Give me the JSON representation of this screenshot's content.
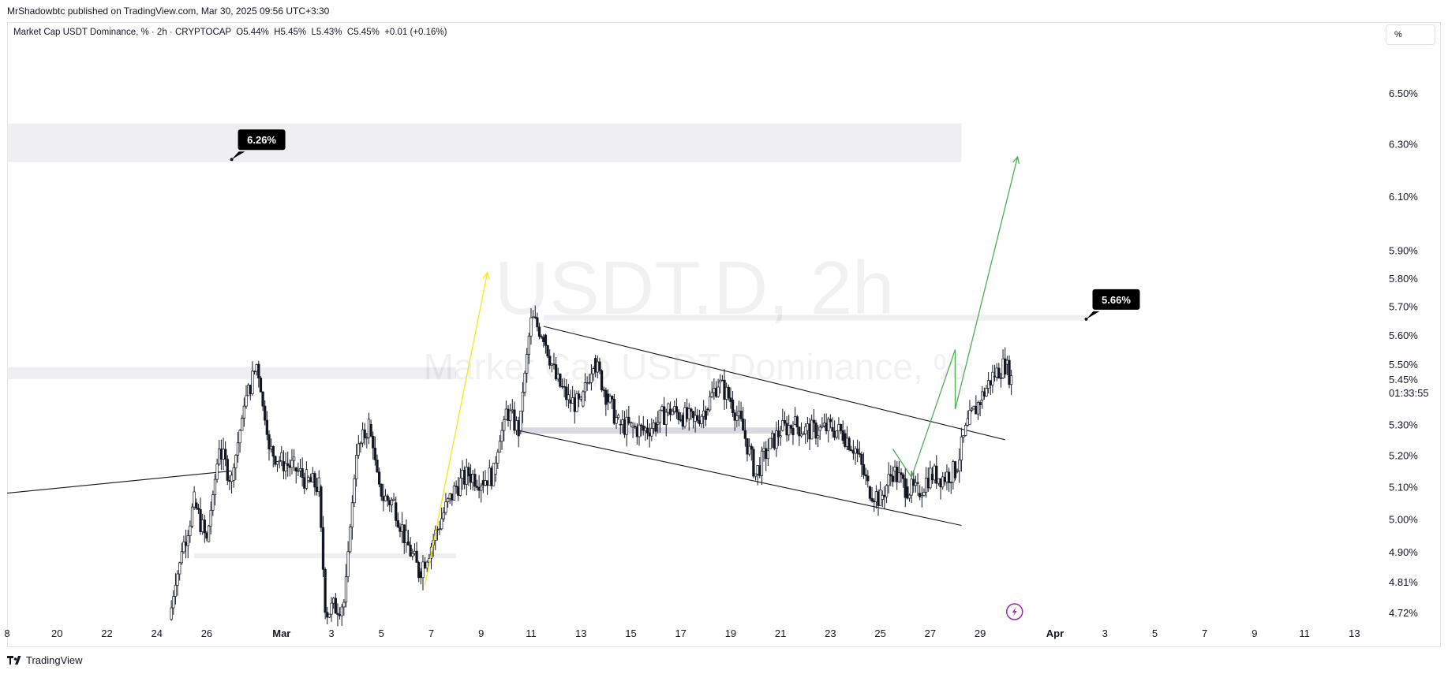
{
  "publisher": "MrShadowbtc published on TradingView.com, Mar 30, 2025 09:56 UTC+3:30",
  "symbol_line": "Market Cap USDT Dominance, % · 2h · CRYPTOCAP  O5.44%  H5.45%  L5.43%  C5.45%  +0.01 (+0.16%)",
  "scale_button": "%",
  "footer": "TradingView",
  "chart_data": {
    "type": "line",
    "title": "",
    "xlabel": "",
    "ylabel": "",
    "watermark": {
      "symbol": "USDT.D, 2h",
      "name": "Market Cap USDT Dominance, %"
    },
    "y_axis": {
      "scale": "log",
      "range": [
        4.69,
        6.68
      ],
      "ticks": [
        "6.50%",
        "6.30%",
        "6.10%",
        "5.90%",
        "5.80%",
        "5.70%",
        "5.60%",
        "5.50%",
        "5.30%",
        "5.20%",
        "5.10%",
        "5.00%",
        "4.90%",
        "4.81%",
        "4.72%"
      ],
      "tick_values": [
        6.5,
        6.3,
        6.1,
        5.9,
        5.8,
        5.7,
        5.6,
        5.5,
        5.3,
        5.2,
        5.1,
        5.0,
        4.9,
        4.81,
        4.72
      ],
      "last_price": "5.45%",
      "last_value": 5.45,
      "countdown": "01:33:55"
    },
    "x_axis": {
      "range": [
        "2025-02-18",
        "2025-04-14"
      ],
      "ticks": [
        {
          "label": "8",
          "date": "2025-02-18"
        },
        {
          "label": "20",
          "date": "2025-02-20"
        },
        {
          "label": "22",
          "date": "2025-02-22"
        },
        {
          "label": "24",
          "date": "2025-02-24"
        },
        {
          "label": "26",
          "date": "2025-02-26"
        },
        {
          "label": "Mar",
          "date": "2025-03-01",
          "bold": true
        },
        {
          "label": "3",
          "date": "2025-03-03"
        },
        {
          "label": "5",
          "date": "2025-03-05"
        },
        {
          "label": "7",
          "date": "2025-03-07"
        },
        {
          "label": "9",
          "date": "2025-03-09"
        },
        {
          "label": "11",
          "date": "2025-03-11"
        },
        {
          "label": "13",
          "date": "2025-03-13"
        },
        {
          "label": "15",
          "date": "2025-03-15"
        },
        {
          "label": "17",
          "date": "2025-03-17"
        },
        {
          "label": "19",
          "date": "2025-03-19"
        },
        {
          "label": "21",
          "date": "2025-03-21"
        },
        {
          "label": "23",
          "date": "2025-03-23"
        },
        {
          "label": "25",
          "date": "2025-03-25"
        },
        {
          "label": "27",
          "date": "2025-03-27"
        },
        {
          "label": "29",
          "date": "2025-03-29"
        },
        {
          "label": "Apr",
          "date": "2025-04-01",
          "bold": true
        },
        {
          "label": "3",
          "date": "2025-04-03"
        },
        {
          "label": "5",
          "date": "2025-04-05"
        },
        {
          "label": "7",
          "date": "2025-04-07"
        },
        {
          "label": "9",
          "date": "2025-04-09"
        },
        {
          "label": "11",
          "date": "2025-04-11"
        },
        {
          "label": "13",
          "date": "2025-04-13"
        }
      ]
    },
    "grid": false,
    "series": [
      {
        "price_path": [
          [
            "2025-02-24 12:00",
            4.7
          ],
          [
            "2025-02-25 00:00",
            4.9
          ],
          [
            "2025-02-25 12:00",
            5.05
          ],
          [
            "2025-02-26 00:00",
            4.93
          ],
          [
            "2025-02-26 12:00",
            5.22
          ],
          [
            "2025-02-27 00:00",
            5.12
          ],
          [
            "2025-02-27 12:00",
            5.36
          ],
          [
            "2025-02-28 00:00",
            5.5
          ],
          [
            "2025-02-28 12:00",
            5.22
          ],
          [
            "2025-03-01 00:00",
            5.18
          ],
          [
            "2025-03-01 12:00",
            5.16
          ],
          [
            "2025-03-02 00:00",
            5.12
          ],
          [
            "2025-03-02 12:00",
            5.1
          ],
          [
            "2025-03-02 18:00",
            4.72
          ],
          [
            "2025-03-03 12:00",
            4.75
          ],
          [
            "2025-03-04 00:00",
            5.2
          ],
          [
            "2025-03-04 12:00",
            5.3
          ],
          [
            "2025-03-05 00:00",
            5.07
          ],
          [
            "2025-03-05 12:00",
            5.05
          ],
          [
            "2025-03-06 00:00",
            4.93
          ],
          [
            "2025-03-06 12:00",
            4.84
          ],
          [
            "2025-03-07 00:00",
            4.92
          ],
          [
            "2025-03-07 12:00",
            5.02
          ],
          [
            "2025-03-08 00:00",
            5.1
          ],
          [
            "2025-03-08 12:00",
            5.14
          ],
          [
            "2025-03-09 00:00",
            5.12
          ],
          [
            "2025-03-09 12:00",
            5.14
          ],
          [
            "2025-03-10 00:00",
            5.35
          ],
          [
            "2025-03-10 12:00",
            5.28
          ],
          [
            "2025-03-11 00:00",
            5.66
          ],
          [
            "2025-03-11 12:00",
            5.6
          ],
          [
            "2025-03-12 00:00",
            5.45
          ],
          [
            "2025-03-12 12:00",
            5.38
          ],
          [
            "2025-03-13 00:00",
            5.36
          ],
          [
            "2025-03-13 12:00",
            5.52
          ],
          [
            "2025-03-14 00:00",
            5.4
          ],
          [
            "2025-03-14 12:00",
            5.3
          ],
          [
            "2025-03-15 00:00",
            5.29
          ],
          [
            "2025-03-15 12:00",
            5.28
          ],
          [
            "2025-03-16 00:00",
            5.3
          ],
          [
            "2025-03-16 12:00",
            5.35
          ],
          [
            "2025-03-17 00:00",
            5.33
          ],
          [
            "2025-03-17 12:00",
            5.31
          ],
          [
            "2025-03-18 00:00",
            5.35
          ],
          [
            "2025-03-18 12:00",
            5.44
          ],
          [
            "2025-03-19 00:00",
            5.38
          ],
          [
            "2025-03-19 12:00",
            5.28
          ],
          [
            "2025-03-20 00:00",
            5.14
          ],
          [
            "2025-03-20 12:00",
            5.22
          ],
          [
            "2025-03-21 00:00",
            5.28
          ],
          [
            "2025-03-21 12:00",
            5.3
          ],
          [
            "2025-03-22 00:00",
            5.28
          ],
          [
            "2025-03-22 12:00",
            5.28
          ],
          [
            "2025-03-23 00:00",
            5.29
          ],
          [
            "2025-03-23 12:00",
            5.27
          ],
          [
            "2025-03-24 00:00",
            5.22
          ],
          [
            "2025-03-24 12:00",
            5.1
          ],
          [
            "2025-03-25 00:00",
            5.06
          ],
          [
            "2025-03-25 12:00",
            5.15
          ],
          [
            "2025-03-26 00:00",
            5.1
          ],
          [
            "2025-03-26 12:00",
            5.08
          ],
          [
            "2025-03-27 00:00",
            5.14
          ],
          [
            "2025-03-27 12:00",
            5.13
          ],
          [
            "2025-03-28 00:00",
            5.15
          ],
          [
            "2025-03-28 12:00",
            5.3
          ],
          [
            "2025-03-29 00:00",
            5.38
          ],
          [
            "2025-03-29 12:00",
            5.46
          ],
          [
            "2025-03-30 00:00",
            5.5
          ],
          [
            "2025-03-30 06:00",
            5.45
          ]
        ]
      }
    ],
    "zones": [
      {
        "from": "2025-02-18",
        "to": "2025-03-28 06:00",
        "y_low": 6.23,
        "y_high": 6.38
      },
      {
        "from": "2025-02-18",
        "to": "2025-03-08",
        "y_low": 5.45,
        "y_high": 5.49
      },
      {
        "from": "2025-02-25 12:00",
        "to": "2025-03-08",
        "y_low": 4.88,
        "y_high": 4.895
      },
      {
        "from": "2025-03-10 12:00",
        "to": "2025-03-21 00:00",
        "y_low": 5.27,
        "y_high": 5.29
      },
      {
        "from": "2025-03-11 12:00",
        "to": "2025-04-02 06:00",
        "y_low": 5.65,
        "y_high": 5.67
      }
    ],
    "trendlines": [
      {
        "from": [
          "2025-02-18",
          5.08
        ],
        "to": [
          "2025-02-27 00:00",
          5.15
        ]
      },
      {
        "from": [
          "2025-03-11 12:00",
          5.63
        ],
        "to": [
          "2025-03-30 00:00",
          5.25
        ]
      },
      {
        "from": [
          "2025-03-10 12:00",
          5.28
        ],
        "to": [
          "2025-03-28 06:00",
          4.98
        ]
      }
    ],
    "projections": [
      {
        "color": "#f5e61c",
        "points": [
          [
            "2025-03-06 18:00",
            4.8
          ],
          [
            "2025-03-09 06:00",
            5.82
          ]
        ]
      },
      {
        "color": "#4caf50",
        "points": [
          [
            "2025-03-25 12:00",
            5.22
          ],
          [
            "2025-03-26 06:00",
            5.13
          ],
          [
            "2025-03-28 00:00",
            5.55
          ],
          [
            "2025-03-28 00:00",
            5.35
          ],
          [
            "2025-03-30 12:00",
            6.25
          ]
        ]
      }
    ],
    "price_labels": [
      {
        "text": "6.26%",
        "anchor": [
          "2025-02-27 00:00",
          6.24
        ]
      },
      {
        "text": "5.66%",
        "anchor": [
          "2025-04-02 06:00",
          5.655
        ]
      }
    ],
    "icons": [
      "lightning-icon"
    ]
  }
}
